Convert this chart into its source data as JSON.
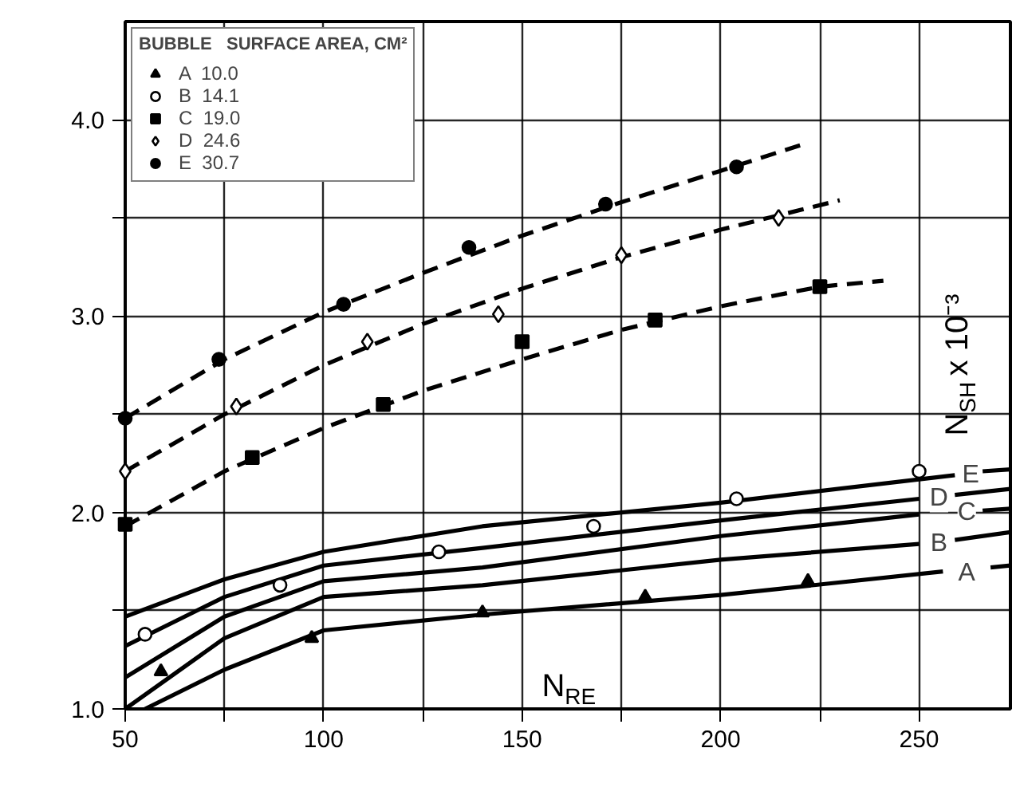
{
  "chart_data": {
    "type": "scatter",
    "xlabel": "N$_{RE}$",
    "ylabel": "N$_{SH}$ x 10⁻³",
    "legend_title": "BUBBLE   SURFACE AREA, CM²",
    "xlim": [
      50,
      273
    ],
    "ylim": [
      1.0,
      4.5
    ],
    "xticks": [
      50,
      {
        "value": 75,
        "label": null
      },
      100,
      {
        "value": 125,
        "label": null
      },
      150,
      {
        "value": 175,
        "label": null
      },
      200,
      {
        "value": 225,
        "label": null
      },
      250
    ],
    "yticks": [
      {
        "value": 1,
        "label": "1.0"
      },
      {
        "value": 1.5,
        "label": null
      },
      {
        "value": 2,
        "label": "2.0"
      },
      {
        "value": 2.5,
        "label": null
      },
      {
        "value": 3,
        "label": "3.0"
      },
      {
        "value": 3.5,
        "label": null
      },
      {
        "value": 4,
        "label": "4.0"
      }
    ],
    "grid": true,
    "legend": "top left",
    "series": [
      {
        "name": "A  10.0",
        "marker": "triangle",
        "color": "#000000",
        "x": [
          59,
          97,
          140,
          181,
          222
        ],
        "values": [
          1.19,
          1.36,
          1.49,
          1.57,
          1.65
        ]
      },
      {
        "name": "B  14.1",
        "marker": "circle",
        "color": "#ffffff",
        "x": [
          55,
          89,
          129,
          168,
          204,
          250
        ],
        "values": [
          1.38,
          1.63,
          1.8,
          1.93,
          2.07,
          2.21
        ]
      },
      {
        "name": "C  19.0",
        "marker": "square",
        "color": "#000000",
        "x": [
          50,
          82,
          115,
          150,
          183.5,
          225
        ],
        "values": [
          1.94,
          2.28,
          2.55,
          2.87,
          2.98,
          3.15
        ]
      },
      {
        "name": "D  24.6",
        "marker": "diamond",
        "color": "#ffffff",
        "x": [
          50,
          78,
          111,
          144,
          175,
          214.6
        ],
        "values": [
          2.21,
          2.54,
          2.87,
          3.01,
          3.31,
          3.5
        ]
      },
      {
        "name": "E  30.7",
        "marker": "circle",
        "color": "#000000",
        "x": [
          50,
          73.6,
          105,
          136.6,
          171,
          204
        ],
        "values": [
          2.48,
          2.78,
          3.06,
          3.35,
          3.57,
          3.76
        ]
      },
      {
        "type": "line",
        "line_style": "dashed",
        "color": "#000000",
        "x": [
          50,
          75,
          100,
          125,
          150,
          175,
          200,
          225,
          241
        ],
        "values": [
          1.93,
          2.21,
          2.43,
          2.62,
          2.78,
          2.93,
          3.05,
          3.15,
          3.18
        ]
      },
      {
        "type": "line",
        "line_style": "dashed",
        "color": "#000000",
        "x": [
          50,
          75,
          100,
          125,
          150,
          175,
          200,
          230
        ],
        "values": [
          2.21,
          2.5,
          2.75,
          2.96,
          3.14,
          3.3,
          3.44,
          3.59
        ]
      },
      {
        "type": "line",
        "line_style": "dashed",
        "color": "#000000",
        "x": [
          50,
          75,
          100,
          125,
          150,
          175,
          200,
          220
        ],
        "values": [
          2.48,
          2.78,
          3.02,
          3.22,
          3.41,
          3.58,
          3.74,
          3.87
        ]
      },
      {
        "type": "line",
        "line_style": "solid",
        "color": "#000000",
        "x": [
          55,
          75,
          100,
          140,
          200,
          256,
          null,
          268,
          273
        ],
        "values": [
          1.0,
          1.2,
          1.4,
          1.48,
          1.58,
          1.7,
          null,
          1.72,
          1.73
        ]
      },
      {
        "type": "line",
        "line_style": "solid",
        "color": "#000000",
        "x": [
          50,
          75,
          100,
          140,
          200,
          250,
          null,
          259,
          273
        ],
        "values": [
          1.0,
          1.36,
          1.57,
          1.63,
          1.76,
          1.84,
          null,
          1.86,
          1.9
        ]
      },
      {
        "type": "line",
        "line_style": "solid",
        "color": "#000000",
        "x": [
          50,
          75,
          100,
          140,
          200,
          250,
          null,
          266,
          273
        ],
        "values": [
          1.16,
          1.47,
          1.65,
          1.72,
          1.88,
          1.99,
          null,
          2.01,
          2.02
        ]
      },
      {
        "type": "line",
        "line_style": "solid",
        "color": "#000000",
        "x": [
          50,
          75,
          100,
          140,
          200,
          250,
          null,
          259,
          273
        ],
        "values": [
          1.32,
          1.57,
          1.73,
          1.82,
          1.96,
          2.07,
          null,
          2.09,
          2.12
        ]
      },
      {
        "type": "line",
        "line_style": "solid",
        "color": "#000000",
        "x": [
          50,
          75,
          100,
          140,
          200,
          259,
          null,
          266,
          273
        ],
        "values": [
          1.47,
          1.66,
          1.8,
          1.93,
          2.05,
          2.19,
          null,
          2.21,
          2.22
        ]
      }
    ],
    "annotations": [
      {
        "text": "A",
        "x": 262,
        "y": 1.69
      },
      {
        "text": "B",
        "x": 255,
        "y": 1.84
      },
      {
        "text": "C",
        "x": 262,
        "y": 2.0
      },
      {
        "text": "D",
        "x": 255,
        "y": 2.07
      },
      {
        "text": "E",
        "x": 263,
        "y": 2.19
      }
    ]
  }
}
